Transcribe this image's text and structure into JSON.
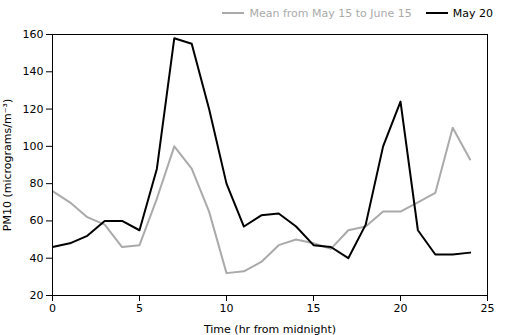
{
  "chart_data": {
    "type": "line",
    "xlabel": "Time (hr from midnight)",
    "ylabel": "PM10 (micrograms/m⁻³)",
    "x": [
      0,
      1,
      2,
      3,
      4,
      5,
      6,
      7,
      8,
      9,
      10,
      11,
      12,
      13,
      14,
      15,
      16,
      17,
      18,
      19,
      20,
      21,
      22,
      23,
      24
    ],
    "series": [
      {
        "name": "Mean from May 15 to June 15",
        "color": "#aaaaaa",
        "values": [
          76,
          70,
          62,
          58,
          46,
          47,
          72,
          100,
          88,
          65,
          32,
          33,
          38,
          47,
          50,
          48,
          45,
          55,
          57,
          65,
          65,
          70,
          75,
          110,
          93
        ]
      },
      {
        "name": "May 20",
        "color": "#000000",
        "values": [
          46,
          48,
          52,
          60,
          60,
          55,
          88,
          158,
          155,
          120,
          80,
          57,
          63,
          64,
          57,
          47,
          46,
          40,
          58,
          100,
          124,
          55,
          42,
          42,
          43
        ]
      }
    ],
    "xlim": [
      0,
      25
    ],
    "ylim": [
      20,
      160
    ],
    "xticks": [
      0,
      5,
      10,
      15,
      20,
      25
    ],
    "yticks": [
      20,
      40,
      60,
      80,
      100,
      120,
      140,
      160
    ],
    "legend": "upper right",
    "grid": false
  }
}
